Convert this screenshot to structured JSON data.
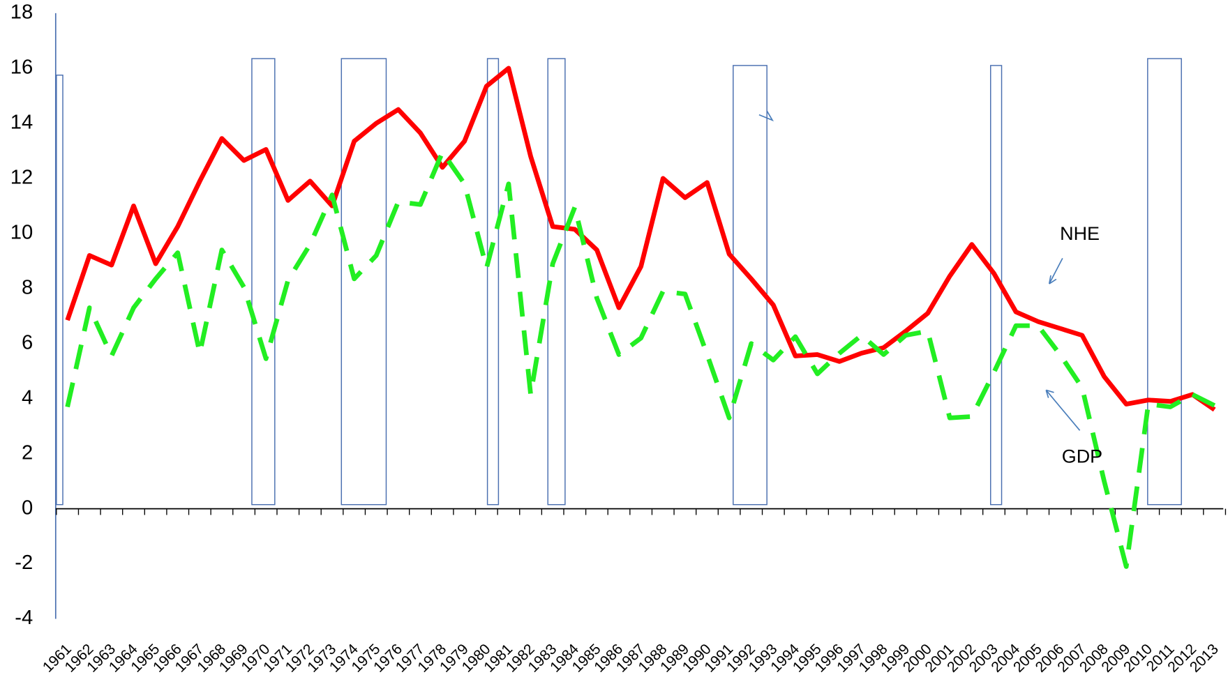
{
  "chart_data": {
    "type": "line",
    "categories": [
      "1961",
      "1962",
      "1963",
      "1964",
      "1965",
      "1966",
      "1967",
      "1968",
      "1969",
      "1970",
      "1971",
      "1972",
      "1973",
      "1974",
      "1975",
      "1976",
      "1977",
      "1978",
      "1979",
      "1980",
      "1981",
      "1982",
      "1983",
      "1984",
      "1985",
      "1986",
      "1987",
      "1988",
      "1989",
      "1990",
      "1991",
      "1992",
      "1993",
      "1994",
      "1995",
      "1996",
      "1997",
      "1998",
      "1999",
      "2000",
      "2001",
      "2002",
      "2003",
      "2004",
      "2005",
      "2006",
      "2007",
      "2008",
      "2009",
      "2010",
      "2011",
      "2012",
      "2013"
    ],
    "series": [
      {
        "name": "NHE",
        "color": "#ff0000",
        "dashed": false,
        "values": [
          6.85,
          9.2,
          8.85,
          11.0,
          8.9,
          10.25,
          11.9,
          13.45,
          12.65,
          13.05,
          11.2,
          11.9,
          11.0,
          13.35,
          14.0,
          14.5,
          13.65,
          12.4,
          13.35,
          15.35,
          16.0,
          12.8,
          10.25,
          10.15,
          9.4,
          7.3,
          8.8,
          12.0,
          11.3,
          11.85,
          9.25,
          8.35,
          7.4,
          5.55,
          5.6,
          5.35,
          5.65,
          5.85,
          6.45,
          7.1,
          8.45,
          9.6,
          8.55,
          7.15,
          6.8,
          6.55,
          6.3,
          4.8,
          3.8,
          3.95,
          3.9,
          4.15,
          3.6
        ]
      },
      {
        "name": "GDP",
        "color": "#22ee22",
        "dashed": true,
        "values": [
          3.7,
          7.3,
          5.55,
          7.3,
          8.35,
          9.3,
          5.65,
          9.4,
          8.05,
          5.45,
          8.3,
          9.6,
          11.4,
          8.35,
          9.2,
          11.15,
          11.05,
          12.95,
          11.8,
          8.75,
          11.8,
          4.15,
          8.9,
          10.95,
          7.65,
          5.6,
          6.2,
          7.9,
          7.8,
          5.6,
          3.3,
          6.0,
          5.4,
          6.25,
          4.9,
          5.65,
          6.3,
          5.6,
          6.3,
          6.45,
          3.3,
          3.35,
          4.95,
          6.65,
          6.65,
          5.6,
          4.4,
          1.0,
          -2.1,
          3.8,
          3.7,
          4.15,
          3.75
        ]
      }
    ],
    "shaded_periods": [
      {
        "start": 1960.5,
        "end": 1960.79,
        "bottom": 0.15,
        "top": 15.75
      },
      {
        "start": 1969.36,
        "end": 1970.4,
        "bottom": 0.15,
        "top": 16.35
      },
      {
        "start": 1973.42,
        "end": 1975.45,
        "bottom": 0.15,
        "top": 16.35
      },
      {
        "start": 1980.04,
        "end": 1980.54,
        "bottom": 0.15,
        "top": 16.35
      },
      {
        "start": 1982.78,
        "end": 1983.56,
        "bottom": 0.15,
        "top": 16.35
      },
      {
        "start": 1991.18,
        "end": 1992.71,
        "bottom": 0.15,
        "top": 16.1
      },
      {
        "start": 2002.85,
        "end": 2003.35,
        "bottom": 0.15,
        "top": 16.1
      },
      {
        "start": 2009.97,
        "end": 2011.5,
        "bottom": 0.15,
        "top": 16.35
      }
    ],
    "shade_color": "#4a6fb0",
    "ylim": [
      -4,
      18
    ],
    "yticks": [
      -4,
      -2,
      0,
      2,
      4,
      6,
      8,
      10,
      12,
      14,
      16,
      18
    ],
    "grid": false
  }
}
